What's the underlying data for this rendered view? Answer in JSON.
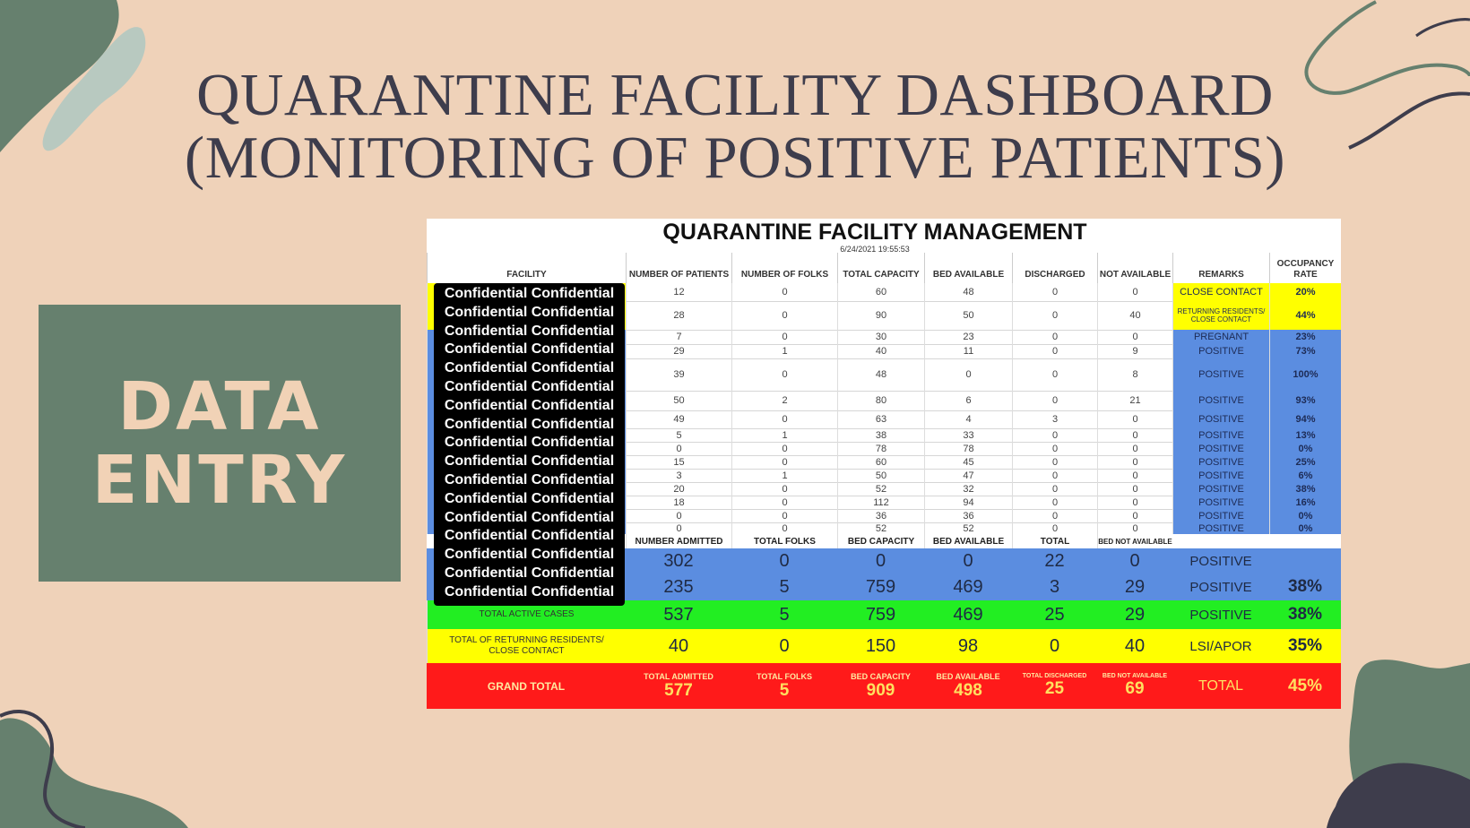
{
  "slide": {
    "title_line1": "QUARANTINE FACILITY DASHBOARD",
    "title_line2": "(MONITORING OF POSITIVE PATIENTS)",
    "side_line1": "DATA",
    "side_line2": "ENTRY"
  },
  "sheet": {
    "title": "QUARANTINE FACILITY MANAGEMENT",
    "timestamp": "6/24/2021 19:55:53",
    "headers": [
      "FACILITY",
      "NUMBER OF PATIENTS",
      "NUMBER OF FOLKS",
      "TOTAL CAPACITY",
      "BED AVAILABLE",
      "DISCHARGED",
      "NOT AVAILABLE",
      "REMARKS",
      "OCCUPANCY RATE"
    ],
    "confidential_label": "Confidential Confidential",
    "rows": [
      {
        "patients": "12",
        "folks": "0",
        "capacity": "60",
        "bed": "48",
        "discharged": "0",
        "not_avail": "0",
        "remarks": "CLOSE CONTACT",
        "rate": "20%"
      },
      {
        "patients": "28",
        "folks": "0",
        "capacity": "90",
        "bed": "50",
        "discharged": "0",
        "not_avail": "40",
        "remarks": "RETURNING RESIDENTS/ CLOSE CONTACT",
        "rate": "44%"
      },
      {
        "patients": "7",
        "folks": "0",
        "capacity": "30",
        "bed": "23",
        "discharged": "0",
        "not_avail": "0",
        "remarks": "PREGNANT",
        "rate": "23%"
      },
      {
        "patients": "29",
        "folks": "1",
        "capacity": "40",
        "bed": "11",
        "discharged": "0",
        "not_avail": "9",
        "remarks": "POSITIVE",
        "rate": "73%"
      },
      {
        "patients": "39",
        "folks": "0",
        "capacity": "48",
        "bed": "0",
        "discharged": "0",
        "not_avail": "8",
        "remarks": "POSITIVE",
        "rate": "100%"
      },
      {
        "patients": "50",
        "folks": "2",
        "capacity": "80",
        "bed": "6",
        "discharged": "0",
        "not_avail": "21",
        "remarks": "POSITIVE",
        "rate": "93%"
      },
      {
        "patients": "49",
        "folks": "0",
        "capacity": "63",
        "bed": "4",
        "discharged": "3",
        "not_avail": "0",
        "remarks": "POSITIVE",
        "rate": "94%"
      },
      {
        "patients": "5",
        "folks": "1",
        "capacity": "38",
        "bed": "33",
        "discharged": "0",
        "not_avail": "0",
        "remarks": "POSITIVE",
        "rate": "13%"
      },
      {
        "patients": "0",
        "folks": "0",
        "capacity": "78",
        "bed": "78",
        "discharged": "0",
        "not_avail": "0",
        "remarks": "POSITIVE",
        "rate": "0%"
      },
      {
        "patients": "15",
        "folks": "0",
        "capacity": "60",
        "bed": "45",
        "discharged": "0",
        "not_avail": "0",
        "remarks": "POSITIVE",
        "rate": "25%"
      },
      {
        "patients": "3",
        "folks": "1",
        "capacity": "50",
        "bed": "47",
        "discharged": "0",
        "not_avail": "0",
        "remarks": "POSITIVE",
        "rate": "6%"
      },
      {
        "patients": "20",
        "folks": "0",
        "capacity": "52",
        "bed": "32",
        "discharged": "0",
        "not_avail": "0",
        "remarks": "POSITIVE",
        "rate": "38%"
      },
      {
        "patients": "18",
        "folks": "0",
        "capacity": "112",
        "bed": "94",
        "discharged": "0",
        "not_avail": "0",
        "remarks": "POSITIVE",
        "rate": "16%"
      },
      {
        "patients": "0",
        "folks": "0",
        "capacity": "36",
        "bed": "36",
        "discharged": "0",
        "not_avail": "0",
        "remarks": "POSITIVE",
        "rate": "0%"
      },
      {
        "patients": "0",
        "folks": "0",
        "capacity": "52",
        "bed": "52",
        "discharged": "0",
        "not_avail": "0",
        "remarks": "POSITIVE",
        "rate": "0%"
      }
    ],
    "subtotal_headers": [
      "NUMBER ADMITTED",
      "TOTAL FOLKS",
      "BED CAPACITY",
      "BED AVAILABLE",
      "TOTAL",
      "BED NOT AVAILABLE"
    ],
    "subtotal1": {
      "admitted": "302",
      "folks": "0",
      "capacity": "0",
      "bed": "0",
      "total": "22",
      "not_avail": "0",
      "remarks": "POSITIVE",
      "rate": ""
    },
    "subtotal2": {
      "admitted": "235",
      "folks": "5",
      "capacity": "759",
      "bed": "469",
      "total": "3",
      "not_avail": "29",
      "remarks": "POSITIVE",
      "rate": "38%"
    },
    "active": {
      "label": "TOTAL ACTIVE CASES",
      "admitted": "537",
      "folks": "5",
      "capacity": "759",
      "bed": "469",
      "total": "25",
      "not_avail": "29",
      "remarks": "POSITIVE",
      "rate": "38%"
    },
    "returning": {
      "label": "TOTAL OF RETURNING RESIDENTS/ CLOSE CONTACT",
      "admitted": "40",
      "folks": "0",
      "capacity": "150",
      "bed": "98",
      "total": "0",
      "not_avail": "40",
      "remarks": "LSI/APOR",
      "rate": "35%"
    },
    "grand": {
      "label": "GRAND TOTAL",
      "headers": [
        "TOTAL ADMITTED",
        "TOTAL FOLKS",
        "BED CAPACITY",
        "BED AVAILABLE",
        "TOTAL DISCHARGED",
        "BED NOT AVAILABLE"
      ],
      "admitted": "577",
      "folks": "5",
      "capacity": "909",
      "bed": "498",
      "total": "25",
      "not_avail": "69",
      "remarks": "TOTAL",
      "rate": "45%"
    }
  },
  "colors": {
    "background": "#efd2b9",
    "green_accent": "#66806e",
    "row_yellow": "#ffff00",
    "row_blue": "#5b8de0",
    "row_green": "#22ee22",
    "row_red": "#ff1a1a"
  }
}
